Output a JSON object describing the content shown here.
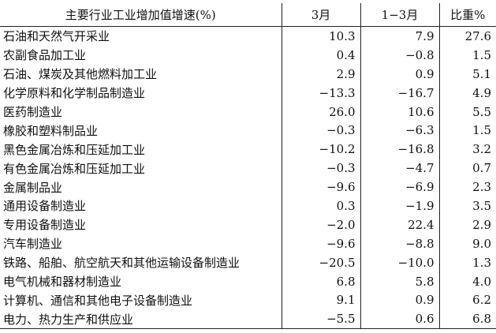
{
  "table": {
    "headers": [
      "主要行业工业增加值增速(%)",
      "3月",
      "1−3月",
      "比重%"
    ],
    "rows": [
      [
        "石油和天然气开采业",
        "10.3",
        "7.9",
        "27.6"
      ],
      [
        "农副食品加工业",
        "0.4",
        "−0.8",
        "1.5"
      ],
      [
        "石油、煤炭及其他燃料加工业",
        "2.9",
        "0.9",
        "5.1"
      ],
      [
        "化学原料和化学制品制造业",
        "−13.3",
        "−16.7",
        "4.9"
      ],
      [
        "医药制造业",
        "26.0",
        "10.6",
        "5.5"
      ],
      [
        "橡胶和塑料制品业",
        "−0.3",
        "−6.3",
        "1.5"
      ],
      [
        "黑色金属冶炼和压延加工业",
        "−10.2",
        "−16.8",
        "3.2"
      ],
      [
        "有色金属冶炼和压延加工业",
        "−0.3",
        "−4.7",
        "0.7"
      ],
      [
        "金属制品业",
        "−9.6",
        "−6.9",
        "2.3"
      ],
      [
        "通用设备制造业",
        "0.3",
        "−1.9",
        "3.5"
      ],
      [
        "专用设备制造业",
        "−2.0",
        "22.4",
        "2.9"
      ],
      [
        "汽车制造业",
        "−9.6",
        "−8.8",
        "9.0"
      ],
      [
        "铁路、船舶、航空航天和其他运输设备制造业",
        "−20.5",
        "−10.0",
        "1.3"
      ],
      [
        "电气机械和器材制造业",
        "6.8",
        "5.8",
        "4.0"
      ],
      [
        "计算机、通信和其他电子设备制造业",
        "9.1",
        "0.9",
        "6.2"
      ],
      [
        "电力、热力生产和供应业",
        "−5.5",
        "0.6",
        "6.8"
      ]
    ]
  }
}
